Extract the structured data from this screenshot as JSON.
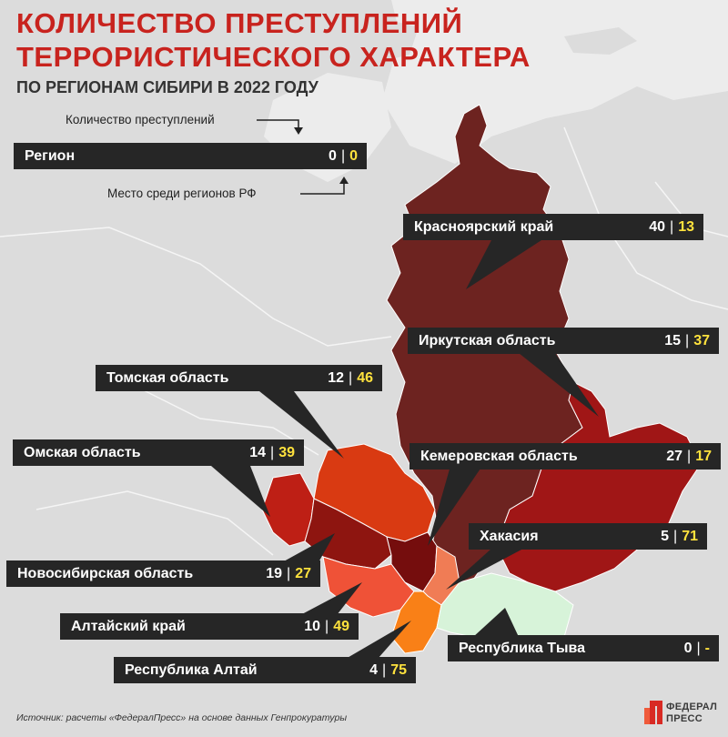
{
  "title": {
    "line1": "КОЛИЧЕСТВО ПРЕСТУПЛЕНИЙ",
    "line2": "ТЕРРОРИСТИЧЕСКОГО ХАРАКТЕРА",
    "subtitle": "ПО РЕГИОНАМ СИБИРИ В 2022 ГОДУ"
  },
  "legend": {
    "count_label": "Количество преступлений",
    "rank_label": "Место среди регионов РФ",
    "sample": {
      "name": "Регион",
      "count": "0",
      "rank": "0"
    }
  },
  "regions": [
    {
      "name": "Красноярский край",
      "count": "40",
      "rank": "13"
    },
    {
      "name": "Иркутская область",
      "count": "15",
      "rank": "37"
    },
    {
      "name": "Томская область",
      "count": "12",
      "rank": "46"
    },
    {
      "name": "Омская область",
      "count": "14",
      "rank": "39"
    },
    {
      "name": "Кемеровская область",
      "count": "27",
      "rank": "17"
    },
    {
      "name": "Хакасия",
      "count": "5",
      "rank": "71"
    },
    {
      "name": "Новосибирская область",
      "count": "19",
      "rank": "27"
    },
    {
      "name": "Алтайский край",
      "count": "10",
      "rank": "49"
    },
    {
      "name": "Республика Тыва",
      "count": "0",
      "rank": "-"
    },
    {
      "name": "Республика Алтай",
      "count": "4",
      "rank": "75"
    }
  ],
  "colors": {
    "title": "#c8231e",
    "rank_highlight": "#ffe23d",
    "label_bg": "#262626",
    "krasnoyarsk": "#6d2320",
    "irkutsk": "#a01616",
    "kemerovo": "#750d0d",
    "novosibirsk": "#8e1510",
    "omsk": "#be1f15",
    "tomsk": "#d93a12",
    "khakasia": "#f07c55",
    "altai_krai": "#ef5237",
    "altai_rep": "#f98017",
    "tyva": "#d7f3d9"
  },
  "source": "Источник: расчеты «ФедералПресс» на основе данных Генпрокуратуры",
  "logo": {
    "line1": "ФЕДЕРАЛ",
    "line2": "ПРЕСС",
    "mark": "ФП-logo"
  }
}
